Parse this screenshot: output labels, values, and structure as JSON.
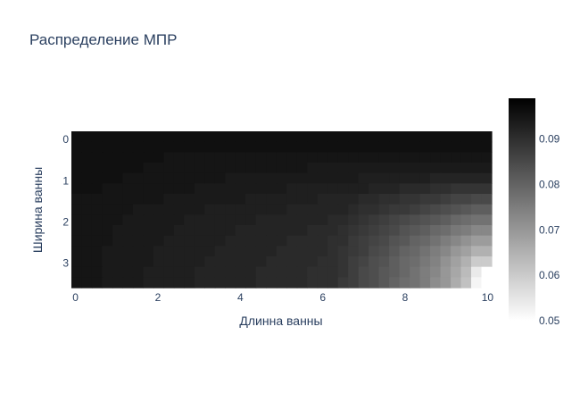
{
  "chart_data": {
    "type": "heatmap",
    "title": "Распределение МПР",
    "xlabel": "Длинна ванны",
    "ylabel": "Ширина ванны",
    "xlim": [
      -0.1,
      10.1
    ],
    "ylim": [
      -0.2,
      3.6
    ],
    "x_ticks": [
      "0",
      "2",
      "4",
      "6",
      "8",
      "10"
    ],
    "y_ticks": [
      "0",
      "1",
      "2",
      "3"
    ],
    "colorscale": [
      "#ffffff",
      "#000000"
    ],
    "zmin": 0.05,
    "zmax": 0.099,
    "colorbar_ticks": [
      "0.09",
      "0.08",
      "0.07",
      "0.06",
      "0.05"
    ],
    "nx": 41,
    "ny": 15,
    "x_step": 0.25,
    "y_step": 0.25,
    "values": [
      [
        0.096,
        0.096,
        0.096,
        0.096,
        0.096,
        0.096,
        0.096,
        0.096,
        0.096,
        0.096,
        0.096,
        0.096,
        0.096,
        0.096,
        0.096,
        0.096,
        0.096,
        0.096,
        0.096,
        0.096,
        0.096,
        0.096,
        0.096,
        0.096,
        0.096,
        0.096,
        0.096,
        0.096,
        0.096,
        0.096,
        0.096,
        0.096,
        0.096,
        0.096,
        0.096,
        0.096,
        0.096,
        0.096,
        0.096,
        0.096,
        0.096
      ],
      [
        0.096,
        0.096,
        0.096,
        0.096,
        0.096,
        0.096,
        0.096,
        0.096,
        0.096,
        0.096,
        0.096,
        0.096,
        0.096,
        0.096,
        0.096,
        0.096,
        0.096,
        0.096,
        0.096,
        0.096,
        0.096,
        0.096,
        0.096,
        0.096,
        0.096,
        0.096,
        0.096,
        0.096,
        0.096,
        0.096,
        0.096,
        0.096,
        0.096,
        0.096,
        0.096,
        0.096,
        0.096,
        0.096,
        0.096,
        0.096,
        0.096
      ],
      [
        0.096,
        0.096,
        0.096,
        0.096,
        0.096,
        0.096,
        0.096,
        0.096,
        0.096,
        0.095,
        0.095,
        0.095,
        0.095,
        0.095,
        0.095,
        0.095,
        0.095,
        0.095,
        0.095,
        0.095,
        0.095,
        0.095,
        0.095,
        0.095,
        0.095,
        0.095,
        0.095,
        0.095,
        0.095,
        0.095,
        0.095,
        0.095,
        0.095,
        0.095,
        0.095,
        0.095,
        0.095,
        0.095,
        0.095,
        0.095,
        0.095
      ],
      [
        0.096,
        0.096,
        0.096,
        0.096,
        0.096,
        0.096,
        0.096,
        0.095,
        0.095,
        0.095,
        0.095,
        0.095,
        0.095,
        0.095,
        0.095,
        0.095,
        0.095,
        0.095,
        0.095,
        0.095,
        0.095,
        0.095,
        0.095,
        0.094,
        0.094,
        0.094,
        0.094,
        0.094,
        0.094,
        0.094,
        0.094,
        0.094,
        0.094,
        0.094,
        0.094,
        0.094,
        0.094,
        0.094,
        0.094,
        0.094,
        0.094
      ],
      [
        0.096,
        0.096,
        0.096,
        0.096,
        0.096,
        0.095,
        0.095,
        0.095,
        0.095,
        0.095,
        0.095,
        0.095,
        0.095,
        0.095,
        0.095,
        0.094,
        0.094,
        0.094,
        0.094,
        0.094,
        0.094,
        0.094,
        0.094,
        0.094,
        0.094,
        0.094,
        0.094,
        0.094,
        0.093,
        0.093,
        0.093,
        0.093,
        0.093,
        0.093,
        0.093,
        0.092,
        0.092,
        0.092,
        0.092,
        0.092,
        0.092
      ],
      [
        0.096,
        0.096,
        0.096,
        0.095,
        0.095,
        0.095,
        0.095,
        0.095,
        0.095,
        0.095,
        0.095,
        0.095,
        0.094,
        0.094,
        0.094,
        0.094,
        0.094,
        0.094,
        0.094,
        0.094,
        0.094,
        0.093,
        0.093,
        0.093,
        0.093,
        0.093,
        0.093,
        0.093,
        0.093,
        0.092,
        0.092,
        0.092,
        0.091,
        0.091,
        0.091,
        0.09,
        0.09,
        0.089,
        0.089,
        0.089,
        0.089
      ],
      [
        0.095,
        0.095,
        0.095,
        0.095,
        0.095,
        0.095,
        0.095,
        0.095,
        0.095,
        0.094,
        0.094,
        0.094,
        0.094,
        0.094,
        0.094,
        0.094,
        0.094,
        0.093,
        0.093,
        0.093,
        0.093,
        0.093,
        0.093,
        0.093,
        0.092,
        0.092,
        0.092,
        0.092,
        0.091,
        0.091,
        0.09,
        0.09,
        0.089,
        0.089,
        0.088,
        0.088,
        0.087,
        0.086,
        0.086,
        0.085,
        0.085
      ],
      [
        0.095,
        0.095,
        0.095,
        0.095,
        0.095,
        0.095,
        0.094,
        0.094,
        0.094,
        0.094,
        0.094,
        0.094,
        0.094,
        0.093,
        0.093,
        0.093,
        0.093,
        0.093,
        0.093,
        0.093,
        0.093,
        0.092,
        0.092,
        0.092,
        0.092,
        0.092,
        0.092,
        0.091,
        0.09,
        0.09,
        0.089,
        0.088,
        0.088,
        0.087,
        0.086,
        0.085,
        0.084,
        0.083,
        0.082,
        0.081,
        0.081
      ],
      [
        0.095,
        0.095,
        0.095,
        0.095,
        0.095,
        0.094,
        0.094,
        0.094,
        0.094,
        0.094,
        0.094,
        0.093,
        0.093,
        0.093,
        0.093,
        0.093,
        0.093,
        0.093,
        0.092,
        0.092,
        0.092,
        0.092,
        0.092,
        0.092,
        0.092,
        0.091,
        0.091,
        0.09,
        0.089,
        0.088,
        0.087,
        0.086,
        0.085,
        0.084,
        0.083,
        0.082,
        0.081,
        0.079,
        0.078,
        0.077,
        0.077
      ],
      [
        0.095,
        0.095,
        0.095,
        0.095,
        0.094,
        0.094,
        0.094,
        0.094,
        0.094,
        0.094,
        0.093,
        0.093,
        0.093,
        0.093,
        0.093,
        0.093,
        0.092,
        0.092,
        0.092,
        0.092,
        0.092,
        0.092,
        0.092,
        0.091,
        0.091,
        0.091,
        0.09,
        0.089,
        0.088,
        0.087,
        0.086,
        0.085,
        0.083,
        0.082,
        0.081,
        0.079,
        0.078,
        0.076,
        0.075,
        0.073,
        0.073
      ],
      [
        0.095,
        0.095,
        0.095,
        0.095,
        0.094,
        0.094,
        0.094,
        0.094,
        0.094,
        0.093,
        0.093,
        0.093,
        0.093,
        0.093,
        0.093,
        0.092,
        0.092,
        0.092,
        0.092,
        0.092,
        0.092,
        0.091,
        0.091,
        0.091,
        0.091,
        0.09,
        0.09,
        0.088,
        0.087,
        0.086,
        0.085,
        0.083,
        0.082,
        0.08,
        0.079,
        0.077,
        0.075,
        0.073,
        0.071,
        0.069,
        0.069
      ],
      [
        0.095,
        0.095,
        0.095,
        0.094,
        0.094,
        0.094,
        0.094,
        0.094,
        0.093,
        0.093,
        0.093,
        0.093,
        0.093,
        0.093,
        0.092,
        0.092,
        0.092,
        0.092,
        0.092,
        0.092,
        0.091,
        0.091,
        0.091,
        0.091,
        0.091,
        0.09,
        0.089,
        0.088,
        0.087,
        0.085,
        0.084,
        0.082,
        0.08,
        0.079,
        0.077,
        0.075,
        0.073,
        0.07,
        0.068,
        0.065,
        0.065
      ],
      [
        0.095,
        0.095,
        0.095,
        0.094,
        0.094,
        0.094,
        0.094,
        0.094,
        0.093,
        0.093,
        0.093,
        0.093,
        0.093,
        0.092,
        0.092,
        0.092,
        0.092,
        0.092,
        0.092,
        0.091,
        0.091,
        0.091,
        0.091,
        0.091,
        0.09,
        0.09,
        0.089,
        0.087,
        0.086,
        0.084,
        0.083,
        0.081,
        0.079,
        0.078,
        0.076,
        0.074,
        0.071,
        0.068,
        0.065,
        0.06,
        0.06
      ],
      [
        0.095,
        0.095,
        0.095,
        0.094,
        0.094,
        0.094,
        0.094,
        0.093,
        0.093,
        0.093,
        0.093,
        0.093,
        0.092,
        0.092,
        0.092,
        0.092,
        0.092,
        0.092,
        0.091,
        0.091,
        0.091,
        0.091,
        0.091,
        0.09,
        0.09,
        0.09,
        0.089,
        0.087,
        0.085,
        0.084,
        0.082,
        0.081,
        0.079,
        0.077,
        0.075,
        0.073,
        0.07,
        0.067,
        0.063,
        0.054,
        0.05
      ],
      [
        0.095,
        0.095,
        0.095,
        0.094,
        0.094,
        0.094,
        0.094,
        0.093,
        0.093,
        0.093,
        0.093,
        0.093,
        0.092,
        0.092,
        0.092,
        0.092,
        0.092,
        0.092,
        0.091,
        0.091,
        0.091,
        0.091,
        0.091,
        0.09,
        0.09,
        0.09,
        0.088,
        0.087,
        0.085,
        0.084,
        0.082,
        0.08,
        0.078,
        0.077,
        0.075,
        0.072,
        0.07,
        0.066,
        0.062,
        0.052,
        0.05
      ]
    ]
  }
}
